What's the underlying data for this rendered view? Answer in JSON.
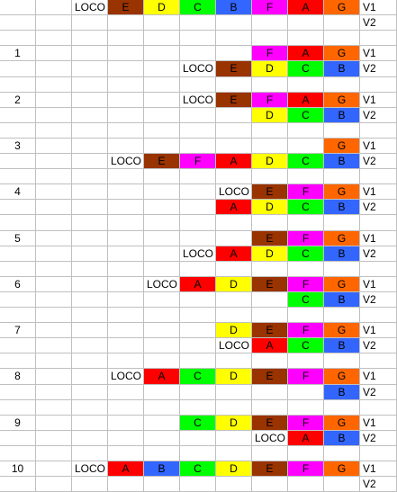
{
  "colors": {
    "E": "#993300",
    "D": "#ffff00",
    "C": "#00ff00",
    "B": "#3366ff",
    "F": "#ff00ff",
    "A": "#ff0000",
    "G": "#ff6600"
  },
  "row_count": 30,
  "col_count": 11,
  "cells": [
    {
      "r": 0,
      "c": 2,
      "t": "LOCO",
      "a": "right"
    },
    {
      "r": 0,
      "c": 3,
      "t": "E"
    },
    {
      "r": 0,
      "c": 4,
      "t": "D"
    },
    {
      "r": 0,
      "c": 5,
      "t": "C"
    },
    {
      "r": 0,
      "c": 6,
      "t": "B"
    },
    {
      "r": 0,
      "c": 7,
      "t": "F"
    },
    {
      "r": 0,
      "c": 8,
      "t": "A"
    },
    {
      "r": 0,
      "c": 9,
      "t": "G"
    },
    {
      "r": 0,
      "c": 10,
      "t": "V1",
      "a": "left"
    },
    {
      "r": 1,
      "c": 10,
      "t": "V2",
      "a": "left"
    },
    {
      "r": 3,
      "c": 0,
      "t": "1",
      "a": "center"
    },
    {
      "r": 3,
      "c": 7,
      "t": "F"
    },
    {
      "r": 3,
      "c": 8,
      "t": "A"
    },
    {
      "r": 3,
      "c": 9,
      "t": "G"
    },
    {
      "r": 3,
      "c": 10,
      "t": "V1",
      "a": "left"
    },
    {
      "r": 4,
      "c": 5,
      "t": "LOCO",
      "a": "right"
    },
    {
      "r": 4,
      "c": 6,
      "t": "E"
    },
    {
      "r": 4,
      "c": 7,
      "t": "D"
    },
    {
      "r": 4,
      "c": 8,
      "t": "C"
    },
    {
      "r": 4,
      "c": 9,
      "t": "B"
    },
    {
      "r": 4,
      "c": 10,
      "t": "V2",
      "a": "left"
    },
    {
      "r": 6,
      "c": 0,
      "t": "2",
      "a": "center"
    },
    {
      "r": 6,
      "c": 5,
      "t": "LOCO",
      "a": "right"
    },
    {
      "r": 6,
      "c": 6,
      "t": "E"
    },
    {
      "r": 6,
      "c": 7,
      "t": "F"
    },
    {
      "r": 6,
      "c": 8,
      "t": "A"
    },
    {
      "r": 6,
      "c": 9,
      "t": "G"
    },
    {
      "r": 6,
      "c": 10,
      "t": "V1",
      "a": "left"
    },
    {
      "r": 7,
      "c": 7,
      "t": "D"
    },
    {
      "r": 7,
      "c": 8,
      "t": "C"
    },
    {
      "r": 7,
      "c": 9,
      "t": "B"
    },
    {
      "r": 7,
      "c": 10,
      "t": "V2",
      "a": "left"
    },
    {
      "r": 9,
      "c": 0,
      "t": "3",
      "a": "center"
    },
    {
      "r": 9,
      "c": 9,
      "t": "G"
    },
    {
      "r": 9,
      "c": 10,
      "t": "V1",
      "a": "left"
    },
    {
      "r": 10,
      "c": 3,
      "t": "LOCO",
      "a": "right"
    },
    {
      "r": 10,
      "c": 4,
      "t": "E"
    },
    {
      "r": 10,
      "c": 5,
      "t": "F"
    },
    {
      "r": 10,
      "c": 6,
      "t": "A"
    },
    {
      "r": 10,
      "c": 7,
      "t": "D"
    },
    {
      "r": 10,
      "c": 8,
      "t": "C"
    },
    {
      "r": 10,
      "c": 9,
      "t": "B"
    },
    {
      "r": 10,
      "c": 10,
      "t": "V2",
      "a": "left"
    },
    {
      "r": 12,
      "c": 0,
      "t": "4",
      "a": "center"
    },
    {
      "r": 12,
      "c": 6,
      "t": "LOCO",
      "a": "right"
    },
    {
      "r": 12,
      "c": 7,
      "t": "E"
    },
    {
      "r": 12,
      "c": 8,
      "t": "F"
    },
    {
      "r": 12,
      "c": 9,
      "t": "G"
    },
    {
      "r": 12,
      "c": 10,
      "t": "V1",
      "a": "left"
    },
    {
      "r": 13,
      "c": 6,
      "t": "A"
    },
    {
      "r": 13,
      "c": 7,
      "t": "D"
    },
    {
      "r": 13,
      "c": 8,
      "t": "C"
    },
    {
      "r": 13,
      "c": 9,
      "t": "B"
    },
    {
      "r": 13,
      "c": 10,
      "t": "V2",
      "a": "left"
    },
    {
      "r": 15,
      "c": 0,
      "t": "5",
      "a": "center"
    },
    {
      "r": 15,
      "c": 7,
      "t": "E"
    },
    {
      "r": 15,
      "c": 8,
      "t": "F"
    },
    {
      "r": 15,
      "c": 9,
      "t": "G"
    },
    {
      "r": 15,
      "c": 10,
      "t": "V1",
      "a": "left"
    },
    {
      "r": 16,
      "c": 5,
      "t": "LOCO",
      "a": "right"
    },
    {
      "r": 16,
      "c": 6,
      "t": "A"
    },
    {
      "r": 16,
      "c": 7,
      "t": "D"
    },
    {
      "r": 16,
      "c": 8,
      "t": "C"
    },
    {
      "r": 16,
      "c": 9,
      "t": "B"
    },
    {
      "r": 16,
      "c": 10,
      "t": "V2",
      "a": "left"
    },
    {
      "r": 18,
      "c": 0,
      "t": "6",
      "a": "center"
    },
    {
      "r": 18,
      "c": 4,
      "t": "LOCO",
      "a": "right"
    },
    {
      "r": 18,
      "c": 5,
      "t": "A"
    },
    {
      "r": 18,
      "c": 6,
      "t": "D"
    },
    {
      "r": 18,
      "c": 7,
      "t": "E"
    },
    {
      "r": 18,
      "c": 8,
      "t": "F"
    },
    {
      "r": 18,
      "c": 9,
      "t": "G"
    },
    {
      "r": 18,
      "c": 10,
      "t": "V1",
      "a": "left"
    },
    {
      "r": 19,
      "c": 8,
      "t": "C"
    },
    {
      "r": 19,
      "c": 9,
      "t": "B"
    },
    {
      "r": 19,
      "c": 10,
      "t": "V2",
      "a": "left"
    },
    {
      "r": 21,
      "c": 0,
      "t": "7",
      "a": "center"
    },
    {
      "r": 21,
      "c": 6,
      "t": "D"
    },
    {
      "r": 21,
      "c": 7,
      "t": "E"
    },
    {
      "r": 21,
      "c": 8,
      "t": "F"
    },
    {
      "r": 21,
      "c": 9,
      "t": "G"
    },
    {
      "r": 21,
      "c": 10,
      "t": "V1",
      "a": "left"
    },
    {
      "r": 22,
      "c": 6,
      "t": "LOCO",
      "a": "right"
    },
    {
      "r": 22,
      "c": 7,
      "t": "A"
    },
    {
      "r": 22,
      "c": 8,
      "t": "C"
    },
    {
      "r": 22,
      "c": 9,
      "t": "B"
    },
    {
      "r": 22,
      "c": 10,
      "t": "V2",
      "a": "left"
    },
    {
      "r": 24,
      "c": 0,
      "t": "8",
      "a": "center"
    },
    {
      "r": 24,
      "c": 3,
      "t": "LOCO",
      "a": "right"
    },
    {
      "r": 24,
      "c": 4,
      "t": "A"
    },
    {
      "r": 24,
      "c": 5,
      "t": "C"
    },
    {
      "r": 24,
      "c": 6,
      "t": "D"
    },
    {
      "r": 24,
      "c": 7,
      "t": "E"
    },
    {
      "r": 24,
      "c": 8,
      "t": "F"
    },
    {
      "r": 24,
      "c": 9,
      "t": "G"
    },
    {
      "r": 24,
      "c": 10,
      "t": "V1",
      "a": "left"
    },
    {
      "r": 25,
      "c": 9,
      "t": "B"
    },
    {
      "r": 25,
      "c": 10,
      "t": "V2",
      "a": "left"
    },
    {
      "r": 27,
      "c": 0,
      "t": "9",
      "a": "center"
    },
    {
      "r": 27,
      "c": 5,
      "t": "C"
    },
    {
      "r": 27,
      "c": 6,
      "t": "D"
    },
    {
      "r": 27,
      "c": 7,
      "t": "E"
    },
    {
      "r": 27,
      "c": 8,
      "t": "F"
    },
    {
      "r": 27,
      "c": 9,
      "t": "G"
    },
    {
      "r": 27,
      "c": 10,
      "t": "V1",
      "a": "left"
    },
    {
      "r": 28,
      "c": 7,
      "t": "LOCO",
      "a": "right"
    },
    {
      "r": 28,
      "c": 8,
      "t": "A"
    },
    {
      "r": 28,
      "c": 9,
      "t": "B"
    },
    {
      "r": 28,
      "c": 10,
      "t": "V2",
      "a": "left"
    },
    {
      "r": 30,
      "c": 0,
      "t": "10",
      "a": "center"
    },
    {
      "r": 30,
      "c": 2,
      "t": "LOCO",
      "a": "right"
    },
    {
      "r": 30,
      "c": 3,
      "t": "A"
    },
    {
      "r": 30,
      "c": 4,
      "t": "B"
    },
    {
      "r": 30,
      "c": 5,
      "t": "C"
    },
    {
      "r": 30,
      "c": 6,
      "t": "D"
    },
    {
      "r": 30,
      "c": 7,
      "t": "E"
    },
    {
      "r": 30,
      "c": 8,
      "t": "F"
    },
    {
      "r": 30,
      "c": 9,
      "t": "G"
    },
    {
      "r": 30,
      "c": 10,
      "t": "V1",
      "a": "left"
    },
    {
      "r": 31,
      "c": 10,
      "t": "V2",
      "a": "left"
    }
  ]
}
